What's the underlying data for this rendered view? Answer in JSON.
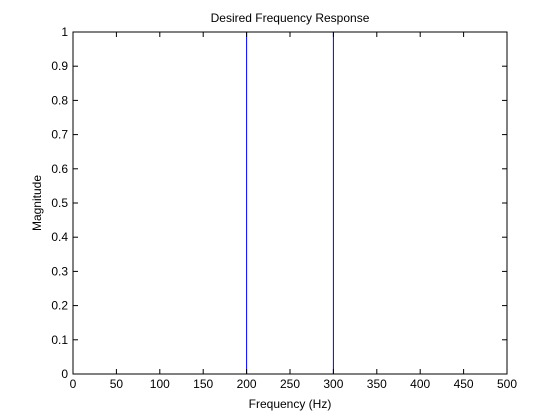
{
  "chart_data": {
    "type": "line",
    "title": "Desired Frequency Response",
    "xlabel": "Frequency (Hz)",
    "ylabel": "Magnitude",
    "xlim": [
      0,
      500
    ],
    "ylim": [
      0,
      1
    ],
    "xticks": [
      "0",
      "50",
      "100",
      "150",
      "200",
      "250",
      "300",
      "350",
      "400",
      "450",
      "500"
    ],
    "yticks": [
      "0",
      "0.1",
      "0.2",
      "0.3",
      "0.4",
      "0.5",
      "0.6",
      "0.7",
      "0.8",
      "0.9",
      "1"
    ],
    "grid": false,
    "legend": "none",
    "series": [
      {
        "color": "#0000ff",
        "x": [
          0,
          200,
          200,
          300,
          300,
          500
        ],
        "y": [
          0,
          0,
          1,
          1,
          0,
          0
        ]
      }
    ]
  },
  "colors": {
    "background": "#ffffff",
    "axes": "#000000",
    "series": "#0000ff"
  }
}
